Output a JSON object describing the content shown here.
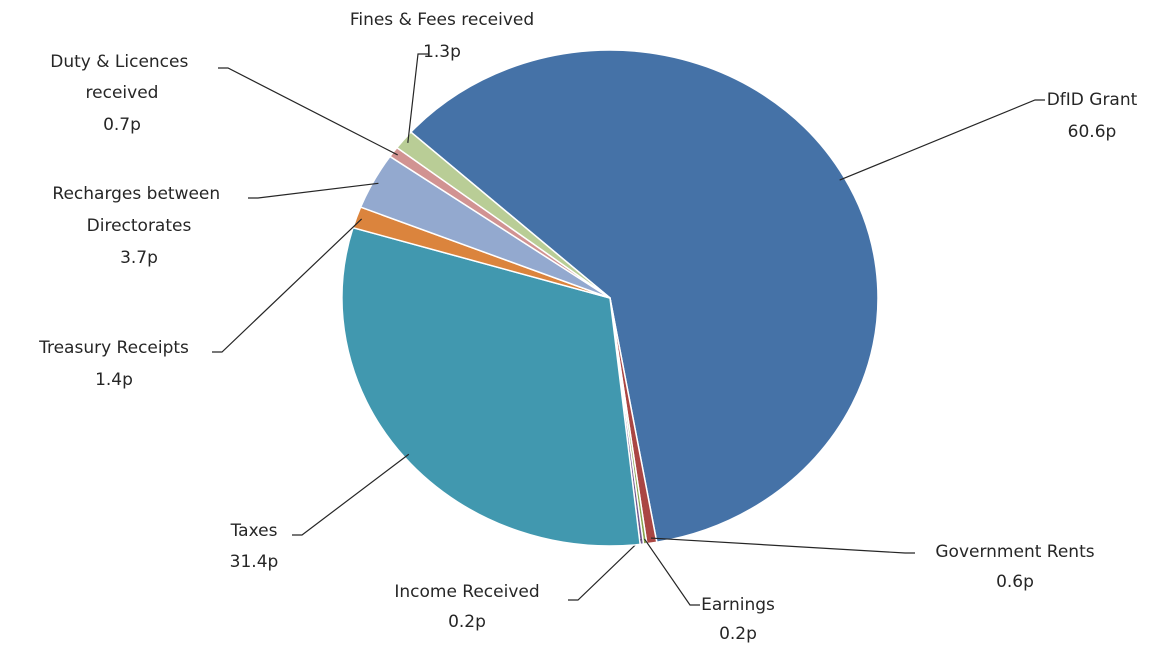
{
  "chart_data": {
    "type": "pie",
    "categories": [
      "DfID Grant",
      "Government Rents",
      "Earnings",
      "Income Received",
      "Taxes",
      "Treasury Receipts",
      "Recharges between Directorates",
      "Duty & Licences received",
      "Fines & Fees received"
    ],
    "values": [
      60.6,
      0.6,
      0.2,
      0.2,
      31.4,
      1.4,
      3.7,
      0.7,
      1.3
    ],
    "value_labels": [
      "60.6p",
      "0.6p",
      "0.2p",
      "0.2p",
      "31.4p",
      "1.4p",
      "3.7p",
      "0.7p",
      "1.3p"
    ],
    "colors": [
      "#4572a7",
      "#aa4643",
      "#89a54e",
      "#71588f",
      "#4198af",
      "#db843d",
      "#93a9cf",
      "#d19392",
      "#b9cd96"
    ]
  }
}
